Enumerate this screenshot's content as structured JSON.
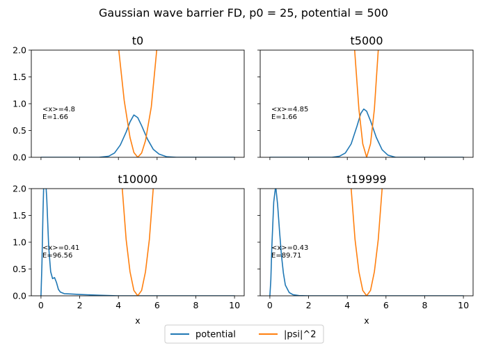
{
  "figure": {
    "suptitle": "Gaussian wave barrier FD, p0 = 25, potential = 500"
  },
  "colors": {
    "potential": "#1f77b4",
    "psi2": "#ff7f0e"
  },
  "chart_data": [
    {
      "type": "line",
      "title": "t0",
      "xlabel": "",
      "ylabel": "",
      "xlim": [
        -0.5,
        10.5
      ],
      "ylim": [
        0,
        2
      ],
      "xticks": [
        0,
        2,
        4,
        6,
        8,
        10
      ],
      "yticks": [
        0.0,
        0.5,
        1.0,
        1.5,
        2.0
      ],
      "show_xticklabels": false,
      "show_yticklabels": true,
      "annotation": [
        "<x>=4.8",
        "E=1.66"
      ],
      "series": [
        {
          "name": "potential",
          "x": [
            0,
            3.0,
            3.5,
            3.8,
            4.1,
            4.4,
            4.6,
            4.8,
            5.0,
            5.2,
            5.5,
            5.8,
            6.1,
            6.5,
            7.0,
            10
          ],
          "y": [
            0,
            0.0,
            0.02,
            0.08,
            0.23,
            0.47,
            0.66,
            0.79,
            0.74,
            0.59,
            0.34,
            0.15,
            0.06,
            0.01,
            0.0,
            0
          ]
        },
        {
          "name": "|psi|^2",
          "x": [
            4.02,
            4.3,
            4.6,
            4.8,
            5.0,
            5.2,
            5.4,
            5.7,
            5.98
          ],
          "y": [
            2.0,
            1.06,
            0.37,
            0.09,
            0.0,
            0.08,
            0.31,
            0.94,
            2.0
          ]
        }
      ]
    },
    {
      "type": "line",
      "title": "t5000",
      "xlabel": "",
      "ylabel": "",
      "xlim": [
        -0.5,
        10.5
      ],
      "ylim": [
        0,
        2
      ],
      "xticks": [
        0,
        2,
        4,
        6,
        8,
        10
      ],
      "yticks": [
        0.0,
        0.5,
        1.0,
        1.5,
        2.0
      ],
      "show_xticklabels": false,
      "show_yticklabels": false,
      "annotation": [
        "<x>=4.85",
        "E=1.66"
      ],
      "series": [
        {
          "name": "potential",
          "x": [
            0,
            3.2,
            3.6,
            3.9,
            4.2,
            4.5,
            4.7,
            4.85,
            5.0,
            5.2,
            5.5,
            5.8,
            6.1,
            6.5,
            10
          ],
          "y": [
            0,
            0.0,
            0.02,
            0.08,
            0.25,
            0.58,
            0.82,
            0.9,
            0.86,
            0.68,
            0.37,
            0.14,
            0.04,
            0.0,
            0
          ]
        },
        {
          "name": "|psi|^2",
          "x": [
            4.38,
            4.6,
            4.8,
            5.0,
            5.2,
            5.4,
            5.6
          ],
          "y": [
            2.0,
            0.9,
            0.25,
            0.0,
            0.25,
            0.9,
            2.0
          ]
        }
      ]
    },
    {
      "type": "line",
      "title": "t10000",
      "xlabel": "x",
      "ylabel": "",
      "xlim": [
        -0.5,
        10.5
      ],
      "ylim": [
        0,
        2
      ],
      "xticks": [
        0,
        2,
        4,
        6,
        8,
        10
      ],
      "yticks": [
        0.0,
        0.5,
        1.0,
        1.5,
        2.0
      ],
      "show_xticklabels": true,
      "show_yticklabels": true,
      "annotation": [
        "<x>=0.41",
        "E=96.56"
      ],
      "series": [
        {
          "name": "potential",
          "x": [
            0,
            0.05,
            0.1,
            0.15,
            0.2,
            0.3,
            0.4,
            0.5,
            0.6,
            0.7,
            0.8,
            0.9,
            1.0,
            1.2,
            1.5,
            2.0,
            3.0,
            4.0,
            5.0,
            10
          ],
          "y": [
            0,
            0.6,
            1.5,
            2.2,
            2.4,
            1.8,
            0.9,
            0.45,
            0.32,
            0.34,
            0.25,
            0.12,
            0.07,
            0.04,
            0.035,
            0.025,
            0.01,
            0.0,
            0.0,
            0
          ]
        },
        {
          "name": "|psi|^2",
          "x": [
            4.2,
            4.4,
            4.6,
            4.8,
            5.0,
            5.2,
            5.4,
            5.6,
            5.8
          ],
          "y": [
            2.0,
            1.05,
            0.45,
            0.1,
            0.0,
            0.1,
            0.45,
            1.05,
            2.0
          ]
        }
      ]
    },
    {
      "type": "line",
      "title": "t19999",
      "xlabel": "x",
      "ylabel": "",
      "xlim": [
        -0.5,
        10.5
      ],
      "ylim": [
        0,
        2
      ],
      "xticks": [
        0,
        2,
        4,
        6,
        8,
        10
      ],
      "yticks": [
        0.0,
        0.5,
        1.0,
        1.5,
        2.0
      ],
      "show_xticklabels": true,
      "show_yticklabels": false,
      "annotation": [
        "<x>=0.43",
        "E=89.71"
      ],
      "series": [
        {
          "name": "potential",
          "x": [
            0,
            0.05,
            0.1,
            0.2,
            0.3,
            0.4,
            0.5,
            0.6,
            0.7,
            0.8,
            1.0,
            1.2,
            1.5,
            2.0,
            10
          ],
          "y": [
            0,
            0.3,
            0.9,
            1.75,
            2.05,
            1.7,
            1.2,
            0.75,
            0.42,
            0.2,
            0.06,
            0.02,
            0.005,
            0.0,
            0
          ]
        },
        {
          "name": "|psi|^2",
          "x": [
            4.2,
            4.4,
            4.6,
            4.8,
            5.0,
            5.2,
            5.4,
            5.6,
            5.8
          ],
          "y": [
            2.0,
            1.05,
            0.45,
            0.1,
            0.0,
            0.1,
            0.45,
            1.05,
            2.0
          ]
        }
      ]
    }
  ],
  "legend": {
    "placement": "bottom-center",
    "items": [
      {
        "label": "potential",
        "color": "#1f77b4"
      },
      {
        "label": "|psi|^2",
        "color": "#ff7f0e"
      }
    ]
  }
}
